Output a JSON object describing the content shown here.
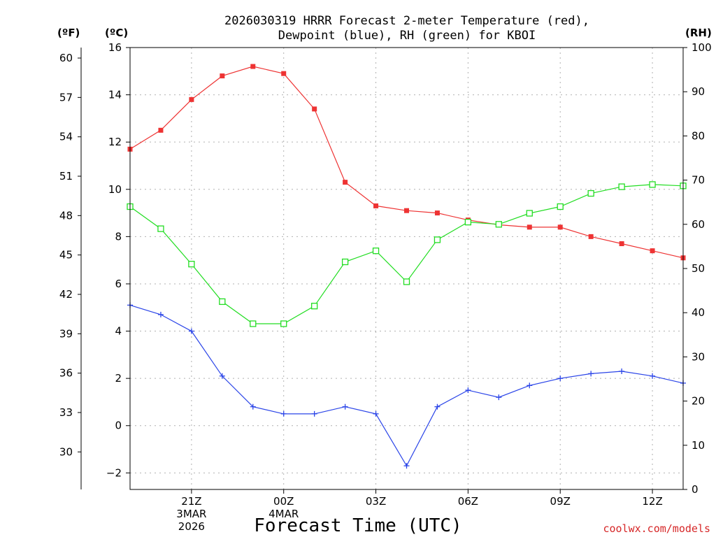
{
  "chart_data": {
    "type": "line",
    "title_lines": [
      "2026030319 HRRR Forecast 2-meter Temperature (red),",
      "Dewpoint (blue), RH (green) for KBOI"
    ],
    "xlabel": "Forecast Time (UTC)",
    "credit": "coolwx.com/models",
    "units": {
      "fahrenheit": "(ºF)",
      "celsius": "(ºC)",
      "rh": "(RH)"
    },
    "x_hours": [
      19,
      20,
      21,
      22,
      23,
      24,
      25,
      26,
      27,
      28,
      29,
      30,
      31,
      32,
      33,
      34,
      35,
      36,
      37
    ],
    "xlim": [
      19,
      37
    ],
    "x_ticks": [
      {
        "hour": 21,
        "lines": [
          "21Z",
          "3MAR",
          "2026"
        ]
      },
      {
        "hour": 24,
        "lines": [
          "00Z",
          "4MAR"
        ]
      },
      {
        "hour": 27,
        "lines": [
          "03Z"
        ]
      },
      {
        "hour": 30,
        "lines": [
          "06Z"
        ]
      },
      {
        "hour": 33,
        "lines": [
          "09Z"
        ]
      },
      {
        "hour": 36,
        "lines": [
          "12Z"
        ]
      }
    ],
    "y_celsius": {
      "lim": [
        -2.7,
        16
      ],
      "ticks": [
        "16",
        "14",
        "12",
        "10",
        "8",
        "6",
        "4",
        "2",
        "0",
        "−2"
      ],
      "tick_values": [
        16,
        14,
        12,
        10,
        8,
        6,
        4,
        2,
        0,
        -2
      ]
    },
    "y_fahrenheit": {
      "ticks": [
        "60",
        "57",
        "54",
        "51",
        "48",
        "45",
        "42",
        "39",
        "36",
        "33",
        "30"
      ],
      "tick_values": [
        60,
        57,
        54,
        51,
        48,
        45,
        42,
        39,
        36,
        33,
        30
      ]
    },
    "y_rh": {
      "lim": [
        0,
        100
      ],
      "ticks": [
        "100",
        "90",
        "80",
        "70",
        "60",
        "50",
        "40",
        "30",
        "20",
        "10",
        "0"
      ],
      "tick_values": [
        100,
        90,
        80,
        70,
        60,
        50,
        40,
        30,
        20,
        10,
        0
      ]
    },
    "grid": true,
    "series": [
      {
        "key": "temperature",
        "axis": "celsius",
        "color": "#ee3333",
        "marker": "filled-square",
        "values": [
          11.7,
          12.5,
          13.8,
          14.8,
          15.2,
          14.9,
          13.4,
          10.3,
          9.3,
          9.1,
          9.0,
          8.7,
          8.5,
          8.4,
          8.4,
          8.0,
          7.7,
          7.4,
          7.1
        ]
      },
      {
        "key": "dewpoint",
        "axis": "celsius",
        "color": "#2a44e8",
        "marker": "plus",
        "values": [
          5.1,
          4.7,
          4.0,
          2.1,
          0.8,
          0.5,
          0.5,
          0.8,
          0.5,
          -1.7,
          0.8,
          1.5,
          1.2,
          1.7,
          2.0,
          2.2,
          2.3,
          2.1,
          1.8
        ]
      },
      {
        "key": "rh",
        "axis": "rh",
        "color": "#22dd22",
        "marker": "open-square",
        "values": [
          64,
          59,
          51,
          42.5,
          37.5,
          37.5,
          41.5,
          51.5,
          54,
          47,
          56.5,
          60.5,
          60,
          62.5,
          64,
          67,
          68.5,
          69,
          68.7
        ]
      }
    ]
  }
}
